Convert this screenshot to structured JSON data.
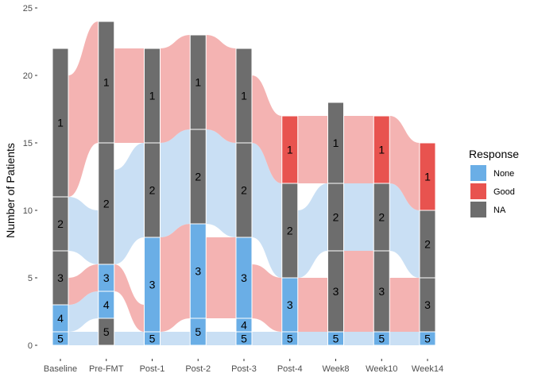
{
  "chart_data": {
    "type": "alluvial",
    "title": "",
    "xlabel": "",
    "ylabel": "Number of Patients",
    "ylim": [
      0,
      25
    ],
    "yticks": [
      0,
      5,
      10,
      15,
      20,
      25
    ],
    "categories": [
      "Baseline",
      "Pre-FMT",
      "Post-1",
      "Post-2",
      "Post-3",
      "Post-4",
      "Week8",
      "Week10",
      "Week14"
    ],
    "colors": {
      "None": "#6aaee6",
      "Good": "#e8534f",
      "NA": "#6d6d6d"
    },
    "legend": {
      "title": "Response",
      "position": "right",
      "entries": [
        {
          "label": "None",
          "key": "None"
        },
        {
          "label": "Good",
          "key": "Good"
        },
        {
          "label": "NA",
          "key": "NA"
        }
      ]
    },
    "stacks": [
      {
        "category": "Baseline",
        "strata": [
          {
            "label": "5",
            "count": 1,
            "response": "None"
          },
          {
            "label": "4",
            "count": 2,
            "response": "None"
          },
          {
            "label": "3",
            "count": 4,
            "response": "NA"
          },
          {
            "label": "2",
            "count": 4,
            "response": "NA"
          },
          {
            "label": "1",
            "count": 11,
            "response": "NA"
          }
        ]
      },
      {
        "category": "Pre-FMT",
        "strata": [
          {
            "label": "5",
            "count": 2,
            "response": "NA"
          },
          {
            "label": "4",
            "count": 2,
            "response": "None"
          },
          {
            "label": "3",
            "count": 2,
            "response": "None"
          },
          {
            "label": "2",
            "count": 9,
            "response": "NA"
          },
          {
            "label": "1",
            "count": 9,
            "response": "NA"
          }
        ]
      },
      {
        "category": "Post-1",
        "strata": [
          {
            "label": "5",
            "count": 1,
            "response": "None"
          },
          {
            "label": "3",
            "count": 7,
            "response": "None"
          },
          {
            "label": "2",
            "count": 7,
            "response": "NA"
          },
          {
            "label": "1",
            "count": 7,
            "response": "NA"
          }
        ]
      },
      {
        "category": "Post-2",
        "strata": [
          {
            "label": "5",
            "count": 2,
            "response": "None"
          },
          {
            "label": "3",
            "count": 7,
            "response": "None"
          },
          {
            "label": "2",
            "count": 7,
            "response": "NA"
          },
          {
            "label": "1",
            "count": 7,
            "response": "NA"
          }
        ]
      },
      {
        "category": "Post-3",
        "strata": [
          {
            "label": "5",
            "count": 1,
            "response": "None"
          },
          {
            "label": "4",
            "count": 1,
            "response": "None"
          },
          {
            "label": "3",
            "count": 6,
            "response": "None"
          },
          {
            "label": "2",
            "count": 7,
            "response": "NA"
          },
          {
            "label": "1",
            "count": 7,
            "response": "NA"
          }
        ]
      },
      {
        "category": "Post-4",
        "strata": [
          {
            "label": "5",
            "count": 1,
            "response": "None"
          },
          {
            "label": "3",
            "count": 4,
            "response": "None"
          },
          {
            "label": "2",
            "count": 7,
            "response": "NA"
          },
          {
            "label": "1",
            "count": 5,
            "response": "Good"
          }
        ]
      },
      {
        "category": "Week8",
        "strata": [
          {
            "label": "5",
            "count": 1,
            "response": "None"
          },
          {
            "label": "3",
            "count": 6,
            "response": "NA"
          },
          {
            "label": "2",
            "count": 5,
            "response": "NA"
          },
          {
            "label": "1",
            "count": 6,
            "response": "NA"
          }
        ]
      },
      {
        "category": "Week10",
        "strata": [
          {
            "label": "5",
            "count": 1,
            "response": "None"
          },
          {
            "label": "3",
            "count": 6,
            "response": "NA"
          },
          {
            "label": "2",
            "count": 5,
            "response": "NA"
          },
          {
            "label": "1",
            "count": 5,
            "response": "Good"
          }
        ]
      },
      {
        "category": "Week14",
        "strata": [
          {
            "label": "5",
            "count": 1,
            "response": "None"
          },
          {
            "label": "3",
            "count": 4,
            "response": "NA"
          },
          {
            "label": "2",
            "count": 5,
            "response": "NA"
          },
          {
            "label": "1",
            "count": 5,
            "response": "Good"
          }
        ]
      }
    ]
  }
}
